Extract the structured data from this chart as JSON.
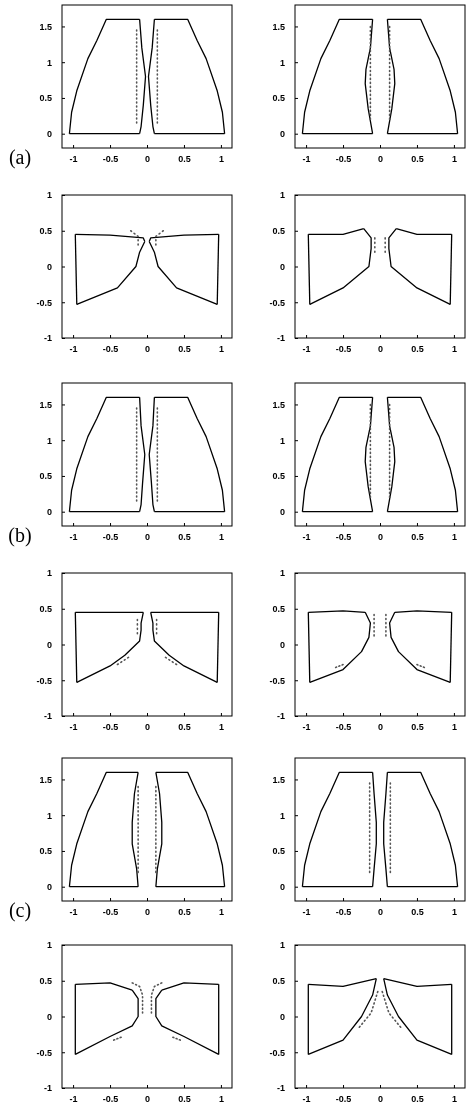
{
  "chart_data": [
    {
      "type": "line",
      "xlim": [
        -1.15,
        1.15
      ],
      "ylim": [
        -0.2,
        1.8
      ],
      "xticks": [
        -1,
        -0.5,
        0,
        0.5,
        1
      ],
      "yticks": [
        0,
        0.5,
        1,
        1.5
      ],
      "annotations": [
        "(a)"
      ],
      "series": [
        {
          "color": "#000000",
          "x": [
            -1.05,
            -1.02,
            -0.95,
            -0.8,
            -0.68,
            -0.55,
            -0.1
          ],
          "values": [
            0,
            0.3,
            0.6,
            1.05,
            1.3,
            1.6,
            1.6
          ]
        },
        {
          "color": "#000000",
          "x": [
            -0.1,
            -0.07,
            -0.02,
            -0.05,
            -0.08,
            -0.1
          ],
          "values": [
            1.6,
            1.2,
            0.8,
            0.4,
            0.1,
            0
          ]
        },
        {
          "color": "#000000",
          "x": [
            -1.05,
            -0.1
          ],
          "values": [
            0,
            0
          ]
        },
        {
          "color": "#000000",
          "x": [
            0.1,
            0.55,
            0.68,
            0.8,
            0.95,
            1.02,
            1.05
          ],
          "values": [
            1.6,
            1.6,
            1.3,
            1.05,
            0.6,
            0.3,
            0
          ]
        },
        {
          "color": "#000000",
          "x": [
            0.1,
            0.07,
            0.02,
            0.05,
            0.08,
            0.1
          ],
          "values": [
            1.6,
            1.2,
            0.8,
            0.4,
            0.1,
            0
          ]
        },
        {
          "color": "#000000",
          "x": [
            0.1,
            1.05
          ],
          "values": [
            0,
            0
          ]
        },
        {
          "color": "#555555",
          "line_style": "dotted",
          "x": [
            -0.14,
            -0.14
          ],
          "values": [
            0.15,
            1.45
          ]
        },
        {
          "color": "#555555",
          "line_style": "dotted",
          "x": [
            0.14,
            0.14
          ],
          "values": [
            0.15,
            1.45
          ]
        }
      ]
    },
    {
      "type": "line",
      "xlim": [
        -1.15,
        1.15
      ],
      "ylim": [
        -0.2,
        1.8
      ],
      "xticks": [
        -1,
        -0.5,
        0,
        0.5,
        1
      ],
      "yticks": [
        0,
        0.5,
        1,
        1.5
      ],
      "series": [
        {
          "color": "#000000",
          "x": [
            -1.05,
            -1.02,
            -0.95,
            -0.8,
            -0.68,
            -0.55,
            -0.1
          ],
          "values": [
            0,
            0.3,
            0.6,
            1.05,
            1.3,
            1.6,
            1.6
          ]
        },
        {
          "color": "#000000",
          "x": [
            -0.1,
            -0.13,
            -0.19,
            -0.2,
            -0.16,
            -0.1
          ],
          "values": [
            1.6,
            1.2,
            0.9,
            0.7,
            0.35,
            0
          ]
        },
        {
          "color": "#000000",
          "x": [
            -1.05,
            -0.1
          ],
          "values": [
            0,
            0
          ]
        },
        {
          "color": "#000000",
          "x": [
            0.1,
            0.55,
            0.68,
            0.8,
            0.95,
            1.02,
            1.05
          ],
          "values": [
            1.6,
            1.6,
            1.3,
            1.05,
            0.6,
            0.3,
            0
          ]
        },
        {
          "color": "#000000",
          "x": [
            0.1,
            0.13,
            0.19,
            0.2,
            0.16,
            0.1
          ],
          "values": [
            1.6,
            1.2,
            0.9,
            0.7,
            0.35,
            0
          ]
        },
        {
          "color": "#000000",
          "x": [
            0.1,
            1.05
          ],
          "values": [
            0,
            0
          ]
        },
        {
          "color": "#555555",
          "line_style": "dotted",
          "x": [
            -0.13,
            -0.13
          ],
          "values": [
            0.2,
            1.5
          ]
        },
        {
          "color": "#555555",
          "line_style": "dotted",
          "x": [
            0.13,
            0.13
          ],
          "values": [
            0.2,
            1.5
          ]
        }
      ]
    },
    {
      "type": "line",
      "xlim": [
        -1.15,
        1.15
      ],
      "ylim": [
        -1,
        1
      ],
      "xticks": [
        -1,
        -0.5,
        0,
        0.5,
        1
      ],
      "yticks": [
        -1,
        -0.5,
        0,
        0.5,
        1
      ],
      "series": [
        {
          "color": "#000000",
          "x": [
            -0.97,
            -0.5,
            -0.05,
            -0.03
          ],
          "values": [
            0.45,
            0.44,
            0.4,
            0.35
          ]
        },
        {
          "color": "#000000",
          "x": [
            -0.03,
            -0.1,
            -0.15,
            -0.4,
            -0.95
          ],
          "values": [
            0.35,
            0.2,
            0,
            -0.3,
            -0.53
          ]
        },
        {
          "color": "#000000",
          "x": [
            -0.97,
            -0.95
          ],
          "values": [
            0.45,
            -0.53
          ]
        },
        {
          "color": "#000000",
          "x": [
            0.03,
            0.05,
            0.5,
            0.97
          ],
          "values": [
            0.35,
            0.4,
            0.44,
            0.45
          ]
        },
        {
          "color": "#000000",
          "x": [
            0.03,
            0.1,
            0.15,
            0.4,
            0.95
          ],
          "values": [
            0.35,
            0.2,
            0,
            -0.3,
            -0.53
          ]
        },
        {
          "color": "#000000",
          "x": [
            0.95,
            0.97
          ],
          "values": [
            -0.53,
            0.45
          ]
        },
        {
          "color": "#555555",
          "line_style": "dotted",
          "x": [
            -0.22,
            -0.12,
            -0.12
          ],
          "values": [
            0.5,
            0.42,
            0.3
          ]
        },
        {
          "color": "#555555",
          "line_style": "dotted",
          "x": [
            0.12,
            0.12,
            0.22
          ],
          "values": [
            0.3,
            0.42,
            0.5
          ]
        }
      ]
    },
    {
      "type": "line",
      "xlim": [
        -1.15,
        1.15
      ],
      "ylim": [
        -1,
        1
      ],
      "xticks": [
        -1,
        -0.5,
        0,
        0.5,
        1
      ],
      "yticks": [
        -1,
        -0.5,
        0,
        0.5,
        1
      ],
      "series": [
        {
          "color": "#000000",
          "x": [
            -0.97,
            -0.5,
            -0.22
          ],
          "values": [
            0.45,
            0.45,
            0.53
          ]
        },
        {
          "color": "#000000",
          "x": [
            -0.22,
            -0.12,
            -0.12,
            -0.15,
            -0.5,
            -0.95
          ],
          "values": [
            0.53,
            0.4,
            0.25,
            0,
            -0.3,
            -0.53
          ]
        },
        {
          "color": "#000000",
          "x": [
            -0.97,
            -0.95
          ],
          "values": [
            0.45,
            -0.53
          ]
        },
        {
          "color": "#000000",
          "x": [
            0.22,
            0.5,
            0.97
          ],
          "values": [
            0.53,
            0.45,
            0.45
          ]
        },
        {
          "color": "#000000",
          "x": [
            0.22,
            0.12,
            0.12,
            0.15,
            0.5,
            0.95
          ],
          "values": [
            0.53,
            0.4,
            0.25,
            0,
            -0.3,
            -0.53
          ]
        },
        {
          "color": "#000000",
          "x": [
            0.95,
            0.97
          ],
          "values": [
            -0.53,
            0.45
          ]
        },
        {
          "color": "#555555",
          "line_style": "dotted",
          "x": [
            -0.07,
            -0.07
          ],
          "values": [
            0.4,
            0.2
          ]
        },
        {
          "color": "#555555",
          "line_style": "dotted",
          "x": [
            0.07,
            0.07
          ],
          "values": [
            0.4,
            0.2
          ]
        }
      ]
    },
    {
      "type": "line",
      "xlim": [
        -1.15,
        1.15
      ],
      "ylim": [
        -0.2,
        1.8
      ],
      "xticks": [
        -1,
        -0.5,
        0,
        0.5,
        1
      ],
      "yticks": [
        0,
        0.5,
        1,
        1.5
      ],
      "annotations": [
        "(b)"
      ],
      "series": [
        {
          "color": "#000000",
          "x": [
            -1.05,
            -1.02,
            -0.95,
            -0.8,
            -0.68,
            -0.55,
            -0.1
          ],
          "values": [
            0,
            0.3,
            0.6,
            1.05,
            1.3,
            1.6,
            1.6
          ]
        },
        {
          "color": "#000000",
          "x": [
            -0.1,
            -0.08,
            -0.03,
            -0.06,
            -0.08,
            -0.1
          ],
          "values": [
            1.6,
            1.2,
            0.8,
            0.4,
            0.1,
            0
          ]
        },
        {
          "color": "#000000",
          "x": [
            -1.05,
            -0.1
          ],
          "values": [
            0,
            0
          ]
        },
        {
          "color": "#000000",
          "x": [
            0.1,
            0.55,
            0.68,
            0.8,
            0.95,
            1.02,
            1.05
          ],
          "values": [
            1.6,
            1.6,
            1.3,
            1.05,
            0.6,
            0.3,
            0
          ]
        },
        {
          "color": "#000000",
          "x": [
            0.1,
            0.08,
            0.03,
            0.06,
            0.08,
            0.1
          ],
          "values": [
            1.6,
            1.2,
            0.8,
            0.4,
            0.1,
            0
          ]
        },
        {
          "color": "#000000",
          "x": [
            0.1,
            1.05
          ],
          "values": [
            0,
            0
          ]
        },
        {
          "color": "#555555",
          "line_style": "dotted",
          "x": [
            -0.14,
            -0.14
          ],
          "values": [
            0.15,
            1.45
          ]
        },
        {
          "color": "#555555",
          "line_style": "dotted",
          "x": [
            0.14,
            0.14
          ],
          "values": [
            0.15,
            1.45
          ]
        }
      ]
    },
    {
      "type": "line",
      "xlim": [
        -1.15,
        1.15
      ],
      "ylim": [
        -0.2,
        1.8
      ],
      "xticks": [
        -1,
        -0.5,
        0,
        0.5,
        1
      ],
      "yticks": [
        0,
        0.5,
        1,
        1.5
      ],
      "series": [
        {
          "color": "#000000",
          "x": [
            -1.05,
            -1.02,
            -0.95,
            -0.8,
            -0.68,
            -0.55,
            -0.1
          ],
          "values": [
            0,
            0.3,
            0.6,
            1.05,
            1.3,
            1.6,
            1.6
          ]
        },
        {
          "color": "#000000",
          "x": [
            -0.1,
            -0.13,
            -0.19,
            -0.2,
            -0.16,
            -0.1
          ],
          "values": [
            1.6,
            1.2,
            0.9,
            0.7,
            0.35,
            0
          ]
        },
        {
          "color": "#000000",
          "x": [
            -1.05,
            -0.1
          ],
          "values": [
            0,
            0
          ]
        },
        {
          "color": "#000000",
          "x": [
            0.1,
            0.55,
            0.68,
            0.8,
            0.95,
            1.02,
            1.05
          ],
          "values": [
            1.6,
            1.6,
            1.3,
            1.05,
            0.6,
            0.3,
            0
          ]
        },
        {
          "color": "#000000",
          "x": [
            0.1,
            0.13,
            0.19,
            0.2,
            0.16,
            0.1
          ],
          "values": [
            1.6,
            1.2,
            0.9,
            0.7,
            0.35,
            0
          ]
        },
        {
          "color": "#000000",
          "x": [
            0.1,
            1.05
          ],
          "values": [
            0,
            0
          ]
        },
        {
          "color": "#555555",
          "line_style": "dotted",
          "x": [
            -0.13,
            -0.13
          ],
          "values": [
            0.2,
            1.5
          ]
        },
        {
          "color": "#555555",
          "line_style": "dotted",
          "x": [
            0.13,
            0.13
          ],
          "values": [
            0.2,
            1.5
          ]
        }
      ]
    },
    {
      "type": "line",
      "xlim": [
        -1.15,
        1.15
      ],
      "ylim": [
        -1,
        1
      ],
      "xticks": [
        -1,
        -0.5,
        0,
        0.5,
        1
      ],
      "yticks": [
        -1,
        -0.5,
        0,
        0.5,
        1
      ],
      "series": [
        {
          "color": "#000000",
          "x": [
            -0.97,
            -0.5,
            -0.05
          ],
          "values": [
            0.45,
            0.45,
            0.45
          ]
        },
        {
          "color": "#000000",
          "x": [
            -0.05,
            -0.08,
            -0.08,
            -0.1,
            -0.3,
            -0.5,
            -0.95
          ],
          "values": [
            0.45,
            0.3,
            0.2,
            0.05,
            -0.15,
            -0.3,
            -0.53
          ]
        },
        {
          "color": "#000000",
          "x": [
            -0.97,
            -0.95
          ],
          "values": [
            0.45,
            -0.53
          ]
        },
        {
          "color": "#000000",
          "x": [
            0.05,
            0.5,
            0.97
          ],
          "values": [
            0.45,
            0.45,
            0.45
          ]
        },
        {
          "color": "#000000",
          "x": [
            0.05,
            0.08,
            0.08,
            0.1,
            0.3,
            0.5,
            0.95
          ],
          "values": [
            0.45,
            0.3,
            0.2,
            0.05,
            -0.15,
            -0.3,
            -0.53
          ]
        },
        {
          "color": "#000000",
          "x": [
            0.95,
            0.97
          ],
          "values": [
            -0.53,
            0.45
          ]
        },
        {
          "color": "#555555",
          "line_style": "dotted",
          "x": [
            -0.13,
            -0.13
          ],
          "values": [
            0.35,
            0.15
          ]
        },
        {
          "color": "#555555",
          "line_style": "dotted",
          "x": [
            0.13,
            0.13
          ],
          "values": [
            0.35,
            0.15
          ]
        },
        {
          "color": "#555555",
          "line_style": "dotted",
          "x": [
            -0.4,
            -0.25
          ],
          "values": [
            -0.28,
            -0.18
          ]
        },
        {
          "color": "#555555",
          "line_style": "dotted",
          "x": [
            0.25,
            0.4
          ],
          "values": [
            -0.18,
            -0.28
          ]
        }
      ]
    },
    {
      "type": "line",
      "xlim": [
        -1.15,
        1.15
      ],
      "ylim": [
        -1,
        1
      ],
      "xticks": [
        -1,
        -0.5,
        0,
        0.5,
        1
      ],
      "yticks": [
        -1,
        -0.5,
        0,
        0.5,
        1
      ],
      "series": [
        {
          "color": "#000000",
          "x": [
            -0.97,
            -0.5,
            -0.2
          ],
          "values": [
            0.45,
            0.47,
            0.45
          ]
        },
        {
          "color": "#000000",
          "x": [
            -0.2,
            -0.13,
            -0.15,
            -0.25,
            -0.5,
            -0.95
          ],
          "values": [
            0.45,
            0.3,
            0.1,
            -0.1,
            -0.35,
            -0.53
          ]
        },
        {
          "color": "#000000",
          "x": [
            -0.97,
            -0.95
          ],
          "values": [
            0.45,
            -0.53
          ]
        },
        {
          "color": "#000000",
          "x": [
            0.2,
            0.5,
            0.97
          ],
          "values": [
            0.45,
            0.47,
            0.45
          ]
        },
        {
          "color": "#000000",
          "x": [
            0.2,
            0.13,
            0.15,
            0.25,
            0.5,
            0.95
          ],
          "values": [
            0.45,
            0.3,
            0.1,
            -0.1,
            -0.35,
            -0.53
          ]
        },
        {
          "color": "#000000",
          "x": [
            0.95,
            0.97
          ],
          "values": [
            -0.53,
            0.45
          ]
        },
        {
          "color": "#555555",
          "line_style": "dotted",
          "x": [
            -0.08,
            -0.08
          ],
          "values": [
            0.42,
            0.12
          ]
        },
        {
          "color": "#555555",
          "line_style": "dotted",
          "x": [
            0.08,
            0.08
          ],
          "values": [
            0.42,
            0.12
          ]
        },
        {
          "color": "#555555",
          "line_style": "dotted",
          "x": [
            -0.6,
            -0.5
          ],
          "values": [
            -0.32,
            -0.28
          ]
        },
        {
          "color": "#555555",
          "line_style": "dotted",
          "x": [
            0.5,
            0.6
          ],
          "values": [
            -0.28,
            -0.32
          ]
        }
      ]
    },
    {
      "type": "line",
      "xlim": [
        -1.15,
        1.15
      ],
      "ylim": [
        -0.2,
        1.8
      ],
      "xticks": [
        -1,
        -0.5,
        0,
        0.5,
        1
      ],
      "yticks": [
        0,
        0.5,
        1,
        1.5
      ],
      "annotations": [
        "(c)"
      ],
      "series": [
        {
          "color": "#000000",
          "x": [
            -1.05,
            -1.02,
            -0.95,
            -0.8,
            -0.68,
            -0.55,
            -0.12
          ],
          "values": [
            0,
            0.3,
            0.6,
            1.05,
            1.3,
            1.6,
            1.6
          ]
        },
        {
          "color": "#000000",
          "x": [
            -0.12,
            -0.17,
            -0.2,
            -0.2,
            -0.14,
            -0.12
          ],
          "values": [
            1.6,
            1.3,
            0.9,
            0.6,
            0.25,
            0
          ]
        },
        {
          "color": "#000000",
          "x": [
            -1.05,
            -0.12
          ],
          "values": [
            0,
            0
          ]
        },
        {
          "color": "#000000",
          "x": [
            0.12,
            0.55,
            0.68,
            0.8,
            0.95,
            1.02,
            1.05
          ],
          "values": [
            1.6,
            1.6,
            1.3,
            1.05,
            0.6,
            0.3,
            0
          ]
        },
        {
          "color": "#000000",
          "x": [
            0.12,
            0.17,
            0.2,
            0.2,
            0.14,
            0.12
          ],
          "values": [
            1.6,
            1.3,
            0.9,
            0.6,
            0.25,
            0
          ]
        },
        {
          "color": "#000000",
          "x": [
            0.12,
            1.05
          ],
          "values": [
            0,
            0
          ]
        },
        {
          "color": "#555555",
          "line_style": "dotted",
          "x": [
            -0.12,
            -0.12
          ],
          "values": [
            0.2,
            1.4
          ]
        },
        {
          "color": "#555555",
          "line_style": "dotted",
          "x": [
            0.12,
            0.12
          ],
          "values": [
            0.2,
            1.4
          ]
        }
      ]
    },
    {
      "type": "line",
      "xlim": [
        -1.15,
        1.15
      ],
      "ylim": [
        -0.2,
        1.8
      ],
      "xticks": [
        -1,
        -0.5,
        0,
        0.5,
        1
      ],
      "yticks": [
        0,
        0.5,
        1,
        1.5
      ],
      "series": [
        {
          "color": "#000000",
          "x": [
            -1.05,
            -1.02,
            -0.95,
            -0.8,
            -0.68,
            -0.55,
            -0.1
          ],
          "values": [
            0,
            0.3,
            0.6,
            1.05,
            1.3,
            1.6,
            1.6
          ]
        },
        {
          "color": "#000000",
          "x": [
            -0.1,
            -0.08,
            -0.05,
            -0.05,
            -0.08,
            -0.1
          ],
          "values": [
            1.6,
            1.3,
            0.9,
            0.6,
            0.25,
            0
          ]
        },
        {
          "color": "#000000",
          "x": [
            -1.05,
            -0.1
          ],
          "values": [
            0,
            0
          ]
        },
        {
          "color": "#000000",
          "x": [
            0.1,
            0.55,
            0.68,
            0.8,
            0.95,
            1.02,
            1.05
          ],
          "values": [
            1.6,
            1.6,
            1.3,
            1.05,
            0.6,
            0.3,
            0
          ]
        },
        {
          "color": "#000000",
          "x": [
            0.1,
            0.08,
            0.05,
            0.05,
            0.08,
            0.1
          ],
          "values": [
            1.6,
            1.3,
            0.9,
            0.6,
            0.25,
            0
          ]
        },
        {
          "color": "#000000",
          "x": [
            0.1,
            1.05
          ],
          "values": [
            0,
            0
          ]
        },
        {
          "color": "#555555",
          "line_style": "dotted",
          "x": [
            -0.14,
            -0.14
          ],
          "values": [
            0.2,
            1.45
          ]
        },
        {
          "color": "#555555",
          "line_style": "dotted",
          "x": [
            0.14,
            0.14
          ],
          "values": [
            0.2,
            1.45
          ]
        }
      ]
    },
    {
      "type": "line",
      "xlim": [
        -1.15,
        1.15
      ],
      "ylim": [
        -1,
        1
      ],
      "xticks": [
        -1,
        -0.5,
        0,
        0.5,
        1
      ],
      "yticks": [
        -1,
        -0.5,
        0,
        0.5,
        1
      ],
      "series": [
        {
          "color": "#000000",
          "x": [
            -0.97,
            -0.5,
            -0.2
          ],
          "values": [
            0.45,
            0.47,
            0.37
          ]
        },
        {
          "color": "#000000",
          "x": [
            -0.2,
            -0.12,
            -0.12,
            -0.2,
            -0.5,
            -0.97
          ],
          "values": [
            0.37,
            0.25,
            0,
            -0.13,
            -0.28,
            -0.53
          ]
        },
        {
          "color": "#000000",
          "x": [
            -0.97,
            -0.97
          ],
          "values": [
            0.45,
            -0.53
          ]
        },
        {
          "color": "#000000",
          "x": [
            0.2,
            0.5,
            0.97
          ],
          "values": [
            0.37,
            0.47,
            0.45
          ]
        },
        {
          "color": "#000000",
          "x": [
            0.2,
            0.12,
            0.12,
            0.2,
            0.5,
            0.97
          ],
          "values": [
            0.37,
            0.25,
            0,
            -0.13,
            -0.28,
            -0.53
          ]
        },
        {
          "color": "#000000",
          "x": [
            0.97,
            0.97
          ],
          "values": [
            -0.53,
            0.45
          ]
        },
        {
          "color": "#555555",
          "line_style": "dotted",
          "x": [
            -0.2,
            -0.1,
            -0.06,
            -0.06
          ],
          "values": [
            0.47,
            0.42,
            0.3,
            0.05
          ]
        },
        {
          "color": "#555555",
          "line_style": "dotted",
          "x": [
            0.06,
            0.06,
            0.1,
            0.2
          ],
          "values": [
            0.05,
            0.3,
            0.42,
            0.47
          ]
        },
        {
          "color": "#555555",
          "line_style": "dotted",
          "x": [
            -0.45,
            -0.35
          ],
          "values": [
            -0.33,
            -0.29
          ]
        },
        {
          "color": "#555555",
          "line_style": "dotted",
          "x": [
            0.35,
            0.45
          ],
          "values": [
            -0.29,
            -0.33
          ]
        }
      ]
    },
    {
      "type": "line",
      "xlim": [
        -1.15,
        1.15
      ],
      "ylim": [
        -1,
        1
      ],
      "xticks": [
        -1,
        -0.5,
        0,
        0.5,
        1
      ],
      "yticks": [
        -1,
        -0.5,
        0,
        0.5,
        1
      ],
      "series": [
        {
          "color": "#000000",
          "x": [
            -0.97,
            -0.5,
            -0.05
          ],
          "values": [
            0.45,
            0.42,
            0.53
          ]
        },
        {
          "color": "#000000",
          "x": [
            -0.05,
            -0.1,
            -0.25,
            -0.5,
            -0.97
          ],
          "values": [
            0.53,
            0.3,
            0,
            -0.33,
            -0.53
          ]
        },
        {
          "color": "#000000",
          "x": [
            -0.97,
            -0.97
          ],
          "values": [
            0.45,
            -0.53
          ]
        },
        {
          "color": "#000000",
          "x": [
            0.05,
            0.5,
            0.97
          ],
          "values": [
            0.53,
            0.42,
            0.45
          ]
        },
        {
          "color": "#000000",
          "x": [
            0.05,
            0.1,
            0.25,
            0.5,
            0.97
          ],
          "values": [
            0.53,
            0.3,
            0,
            -0.33,
            -0.53
          ]
        },
        {
          "color": "#000000",
          "x": [
            0.97,
            0.97
          ],
          "values": [
            -0.53,
            0.45
          ]
        },
        {
          "color": "#555555",
          "line_style": "dotted",
          "x": [
            -0.28,
            -0.12,
            -0.03
          ],
          "values": [
            -0.15,
            0.05,
            0.35
          ]
        },
        {
          "color": "#555555",
          "line_style": "dotted",
          "x": [
            0.03,
            0.12,
            0.28
          ],
          "values": [
            0.35,
            0.05,
            -0.15
          ]
        }
      ]
    }
  ]
}
